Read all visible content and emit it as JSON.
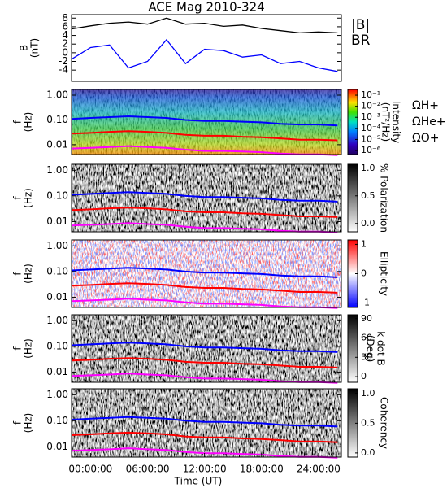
{
  "chart_data": [
    {
      "type": "line",
      "title": "ACE Mag 2010-324",
      "ylabel": "B",
      "yunit": "(nT)",
      "x": [
        -2,
        0,
        2,
        4,
        6,
        8,
        10,
        12,
        14,
        16,
        18,
        20,
        22,
        24,
        26
      ],
      "xlim": [
        -2,
        26.4
      ],
      "ylim": [
        -6.6,
        8.8
      ],
      "yticks": [
        8,
        6,
        4,
        2,
        0,
        -2,
        -4
      ],
      "series": [
        {
          "name": "|B|",
          "color": "#000000",
          "values": [
            5.5,
            6.2,
            6.8,
            7.1,
            6.6,
            8.0,
            6.6,
            6.8,
            6.1,
            6.4,
            5.6,
            5.1,
            4.6,
            4.8,
            4.6
          ]
        },
        {
          "name": "BR",
          "color": "#0000ff",
          "values": [
            -1.5,
            1.2,
            1.8,
            -3.5,
            -2.0,
            3.0,
            -2.5,
            0.8,
            0.5,
            -1.0,
            -0.5,
            -2.5,
            -2.0,
            -3.5,
            -4.3
          ]
        }
      ]
    },
    {
      "type": "spectrogram",
      "ylabel": "f",
      "yunit": "(Hz)",
      "ylim": [
        0.004,
        1.7
      ],
      "ylog": true,
      "yticks": [
        {
          "value": 1,
          "label": "1.00"
        },
        {
          "value": 0.1,
          "label": "0.10"
        },
        {
          "value": 0.01,
          "label": "0.01"
        }
      ],
      "colormap": "jet",
      "colorbar_label": "Intensity",
      "colorbar_unit": "(nT²/Hz)",
      "colorbar_log": true,
      "colorbar_lim": [
        4.3e-07,
        0.33
      ],
      "colorbar_ticks": [
        {
          "value": 0.1,
          "label": "10⁻¹"
        },
        {
          "value": 0.01,
          "label": "10⁻²"
        },
        {
          "value": 0.001,
          "label": "10⁻³"
        },
        {
          "value": 0.0001,
          "label": "10⁻⁴"
        },
        {
          "value": 1e-05,
          "label": "10⁻⁵"
        },
        {
          "value": 1e-06,
          "label": "10⁻⁶"
        }
      ],
      "x": [
        -2,
        0,
        2,
        4,
        6,
        8,
        10,
        12,
        14,
        16,
        18,
        20,
        22,
        24,
        26
      ],
      "xlim": [
        -2,
        26.4
      ],
      "series": [
        {
          "name": "ΩH+",
          "color": "#0000ff",
          "values": [
            0.11,
            0.12,
            0.13,
            0.14,
            0.13,
            0.12,
            0.1,
            0.09,
            0.09,
            0.085,
            0.08,
            0.07,
            0.065,
            0.065,
            0.06
          ]
        },
        {
          "name": "ΩHe+",
          "color": "#ff0000",
          "values": [
            0.028,
            0.03,
            0.033,
            0.035,
            0.033,
            0.03,
            0.025,
            0.023,
            0.023,
            0.021,
            0.02,
            0.018,
            0.016,
            0.016,
            0.015
          ]
        },
        {
          "name": "ΩO+",
          "color": "#ff00ff",
          "values": [
            0.007,
            0.0075,
            0.008,
            0.0088,
            0.008,
            0.0075,
            0.0063,
            0.0056,
            0.0056,
            0.0053,
            0.005,
            0.0044,
            0.0041,
            0.0041,
            0.0038
          ]
        }
      ]
    },
    {
      "type": "spectrogram",
      "ylabel": "f",
      "yunit": "(Hz)",
      "ylim": [
        0.004,
        1.7
      ],
      "ylog": true,
      "yticks": [
        {
          "value": 1,
          "label": "1.00"
        },
        {
          "value": 0.1,
          "label": "0.10"
        },
        {
          "value": 0.01,
          "label": "0.01"
        }
      ],
      "colormap": "gray",
      "colorbar_label": "% Polarization",
      "colorbar_lim": [
        -0.15,
        1.07
      ],
      "colorbar_ticks": [
        {
          "value": 1,
          "label": "1.0"
        },
        {
          "value": 0.5,
          "label": "0.5"
        },
        {
          "value": 0,
          "label": "0.0"
        }
      ],
      "x": [
        -2,
        0,
        2,
        4,
        6,
        8,
        10,
        12,
        14,
        16,
        18,
        20,
        22,
        24,
        26
      ],
      "xlim": [
        -2,
        26.4
      ],
      "series": [
        {
          "color": "#0000ff",
          "values": [
            0.11,
            0.12,
            0.13,
            0.14,
            0.13,
            0.12,
            0.1,
            0.09,
            0.09,
            0.085,
            0.08,
            0.07,
            0.065,
            0.065,
            0.06
          ]
        },
        {
          "color": "#ff0000",
          "values": [
            0.028,
            0.03,
            0.033,
            0.035,
            0.033,
            0.03,
            0.025,
            0.023,
            0.023,
            0.021,
            0.02,
            0.018,
            0.016,
            0.016,
            0.015
          ]
        },
        {
          "color": "#ff00ff",
          "values": [
            0.007,
            0.0075,
            0.008,
            0.0088,
            0.008,
            0.0075,
            0.0063,
            0.0056,
            0.0056,
            0.0053,
            0.005,
            0.0044,
            0.0041,
            0.0041,
            0.0038
          ]
        }
      ]
    },
    {
      "type": "spectrogram",
      "ylabel": "f",
      "yunit": "(Hz)",
      "ylim": [
        0.004,
        1.7
      ],
      "ylog": true,
      "yticks": [
        {
          "value": 1,
          "label": "1.00"
        },
        {
          "value": 0.1,
          "label": "0.10"
        },
        {
          "value": 0.01,
          "label": "0.01"
        }
      ],
      "colormap": "bwr",
      "colorbar_label": "Ellipticity",
      "colorbar_lim": [
        -1.15,
        1.15
      ],
      "colorbar_ticks": [
        1,
        0,
        -1
      ],
      "x": [
        -2,
        0,
        2,
        4,
        6,
        8,
        10,
        12,
        14,
        16,
        18,
        20,
        22,
        24,
        26
      ],
      "xlim": [
        -2,
        26.4
      ],
      "series": [
        {
          "color": "#0000ff",
          "values": [
            0.11,
            0.12,
            0.13,
            0.14,
            0.13,
            0.12,
            0.1,
            0.09,
            0.09,
            0.085,
            0.08,
            0.07,
            0.065,
            0.065,
            0.06
          ]
        },
        {
          "color": "#ff0000",
          "values": [
            0.028,
            0.03,
            0.033,
            0.035,
            0.033,
            0.03,
            0.025,
            0.023,
            0.023,
            0.021,
            0.02,
            0.018,
            0.016,
            0.016,
            0.015
          ]
        },
        {
          "color": "#ff00ff",
          "values": [
            0.007,
            0.0075,
            0.008,
            0.0088,
            0.008,
            0.0075,
            0.0063,
            0.0056,
            0.0056,
            0.0053,
            0.005,
            0.0044,
            0.0041,
            0.0041,
            0.0038
          ]
        }
      ]
    },
    {
      "type": "spectrogram",
      "ylabel": "f",
      "yunit": "(Hz)",
      "ylim": [
        0.004,
        1.7
      ],
      "ylog": true,
      "yticks": [
        {
          "value": 1,
          "label": "1.00"
        },
        {
          "value": 0.1,
          "label": "0.10"
        },
        {
          "value": 0.01,
          "label": "0.01"
        }
      ],
      "colormap": "gray",
      "colorbar_label": "k dot B",
      "colorbar_unit": "(Deg)",
      "colorbar_lim": [
        -8.75,
        96
      ],
      "colorbar_ticks": [
        90,
        60,
        30,
        0
      ],
      "x": [
        -2,
        0,
        2,
        4,
        6,
        8,
        10,
        12,
        14,
        16,
        18,
        20,
        22,
        24,
        26
      ],
      "xlim": [
        -2,
        26.4
      ],
      "series": [
        {
          "color": "#0000ff",
          "values": [
            0.11,
            0.12,
            0.13,
            0.14,
            0.13,
            0.12,
            0.1,
            0.09,
            0.09,
            0.085,
            0.08,
            0.07,
            0.065,
            0.065,
            0.06
          ]
        },
        {
          "color": "#ff0000",
          "values": [
            0.028,
            0.03,
            0.033,
            0.035,
            0.033,
            0.03,
            0.025,
            0.023,
            0.023,
            0.021,
            0.02,
            0.018,
            0.016,
            0.016,
            0.015
          ]
        },
        {
          "color": "#ff00ff",
          "values": [
            0.007,
            0.0075,
            0.008,
            0.0088,
            0.008,
            0.0075,
            0.0063,
            0.0056,
            0.0056,
            0.0053,
            0.005,
            0.0044,
            0.0041,
            0.0041,
            0.0038
          ]
        }
      ]
    },
    {
      "type": "spectrogram",
      "ylabel": "f",
      "yunit": "(Hz)",
      "ylim": [
        0.004,
        1.7
      ],
      "ylog": true,
      "yticks": [
        {
          "value": 1,
          "label": "1.00"
        },
        {
          "value": 0.1,
          "label": "0.10"
        },
        {
          "value": 0.01,
          "label": "0.01"
        }
      ],
      "colormap": "gray",
      "colorbar_label": "Coherency",
      "colorbar_lim": [
        -0.07,
        1.08
      ],
      "colorbar_ticks": [
        {
          "value": 1,
          "label": "1.0"
        },
        {
          "value": 0.5,
          "label": "0.5"
        },
        {
          "value": 0,
          "label": "0.0"
        }
      ],
      "x": [
        -2,
        0,
        2,
        4,
        6,
        8,
        10,
        12,
        14,
        16,
        18,
        20,
        22,
        24,
        26
      ],
      "xlim": [
        -2,
        26.4
      ],
      "xlabel": "Time (UT)",
      "xticks": [
        {
          "value": 0,
          "label": "00:00:00"
        },
        {
          "value": 6,
          "label": "06:00:00"
        },
        {
          "value": 12,
          "label": "12:00:00"
        },
        {
          "value": 18,
          "label": "18:00:00"
        },
        {
          "value": 24,
          "label": "24:00:00"
        }
      ],
      "series": [
        {
          "color": "#0000ff",
          "values": [
            0.11,
            0.12,
            0.13,
            0.14,
            0.13,
            0.12,
            0.1,
            0.09,
            0.09,
            0.085,
            0.08,
            0.07,
            0.065,
            0.065,
            0.06
          ]
        },
        {
          "color": "#ff0000",
          "values": [
            0.028,
            0.03,
            0.033,
            0.035,
            0.033,
            0.03,
            0.025,
            0.023,
            0.023,
            0.021,
            0.02,
            0.018,
            0.016,
            0.016,
            0.015
          ]
        },
        {
          "color": "#ff00ff",
          "values": [
            0.007,
            0.0075,
            0.008,
            0.0088,
            0.008,
            0.0075,
            0.0063,
            0.0056,
            0.0056,
            0.0053,
            0.005,
            0.0044,
            0.0041,
            0.0041,
            0.0038
          ]
        }
      ]
    }
  ]
}
